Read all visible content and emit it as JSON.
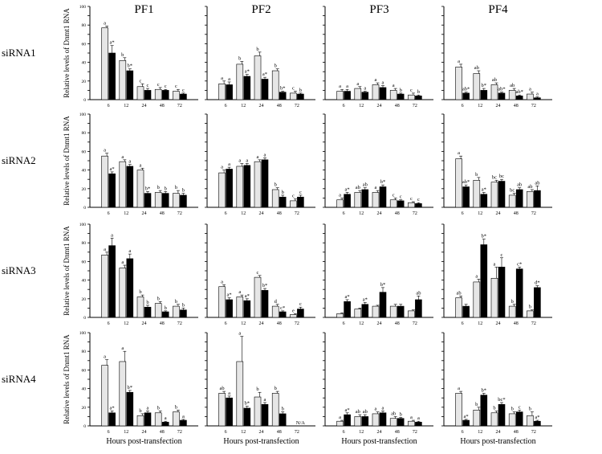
{
  "figure": {
    "columns": [
      "PF1",
      "PF2",
      "PF3",
      "PF4"
    ],
    "rows": [
      "siRNA1",
      "siRNA2",
      "siRNA3",
      "siRNA4"
    ],
    "ylabel": "Relative levels of Dnmt1 RNA",
    "xlabel": "Hours post-transfection",
    "colors": {
      "control": "#e6e6e6",
      "treated": "#000000",
      "axis": "#000000"
    }
  },
  "chart_data": [
    {
      "type": "bar",
      "panel": "siRNA1-PF1",
      "categories": [
        "6",
        "12",
        "24",
        "48",
        "72"
      ],
      "ylim": [
        0,
        100
      ],
      "ytick_labels": [
        "0",
        "",
        "20",
        "",
        "40",
        "",
        "60",
        "",
        "80",
        "",
        "100"
      ],
      "series": [
        {
          "values": [
            77,
            42,
            14,
            11,
            9
          ],
          "errors": [
            2,
            3,
            3,
            2,
            2
          ],
          "labels": [
            "a",
            "b",
            "c",
            "c",
            "c"
          ]
        },
        {
          "values": [
            50,
            31,
            10,
            10,
            6
          ],
          "errors": [
            8,
            2,
            2,
            1,
            1
          ],
          "labels": [
            "a*",
            "b*",
            "c",
            "c",
            "c"
          ]
        }
      ]
    },
    {
      "type": "bar",
      "panel": "siRNA1-PF2",
      "categories": [
        "6",
        "12",
        "24",
        "48",
        "72"
      ],
      "ylim": [
        0,
        100
      ],
      "ytick_labels": [],
      "series": [
        {
          "values": [
            17,
            38,
            47,
            31,
            7
          ],
          "errors": [
            3,
            3,
            4,
            2,
            2
          ],
          "labels": [
            "a",
            "b",
            "b",
            "b",
            "c"
          ]
        },
        {
          "values": [
            16,
            25,
            22,
            8,
            6
          ],
          "errors": [
            3,
            2,
            2,
            1,
            1
          ],
          "labels": [
            "a",
            "a*",
            "a*",
            "b*",
            "b"
          ]
        }
      ]
    },
    {
      "type": "bar",
      "panel": "siRNA1-PF3",
      "categories": [
        "6",
        "12",
        "24",
        "48",
        "72"
      ],
      "ylim": [
        0,
        100
      ],
      "ytick_labels": [],
      "series": [
        {
          "values": [
            9,
            12,
            16,
            10,
            5
          ],
          "errors": [
            2,
            2,
            2,
            2,
            2
          ],
          "labels": [
            "a",
            "a",
            "a",
            "a",
            "c"
          ]
        },
        {
          "values": [
            9,
            8,
            13,
            6,
            4
          ],
          "errors": [
            2,
            1,
            2,
            1,
            1
          ],
          "labels": [
            "a",
            "a",
            "a",
            "b",
            "b"
          ]
        }
      ]
    },
    {
      "type": "bar",
      "panel": "siRNA1-PF4",
      "categories": [
        "6",
        "12",
        "24",
        "48",
        "72"
      ],
      "ylim": [
        0,
        100
      ],
      "ytick_labels": [],
      "series": [
        {
          "values": [
            35,
            28,
            16,
            10,
            6
          ],
          "errors": [
            3,
            3,
            2,
            2,
            2
          ],
          "labels": [
            "a",
            "ab",
            "ab",
            "ab",
            "a"
          ]
        },
        {
          "values": [
            7,
            10,
            7,
            4,
            2
          ],
          "errors": [
            1,
            2,
            1,
            1,
            1
          ],
          "labels": [
            "ab*",
            "b*",
            "ab*",
            "ab*",
            "a"
          ]
        }
      ]
    },
    {
      "type": "bar",
      "panel": "siRNA2-PF1",
      "categories": [
        "6",
        "12",
        "24",
        "48",
        "72"
      ],
      "ylim": [
        0,
        100
      ],
      "ytick_labels": [
        "0",
        "",
        "20",
        "",
        "40",
        "",
        "60",
        "",
        "80",
        "",
        "100"
      ],
      "series": [
        {
          "values": [
            55,
            49,
            40,
            16,
            15
          ],
          "errors": [
            3,
            2,
            2,
            2,
            3
          ],
          "labels": [
            "a",
            "a",
            "a",
            "b",
            "b"
          ]
        },
        {
          "values": [
            36,
            44,
            15,
            15,
            13
          ],
          "errors": [
            2,
            2,
            2,
            2,
            2
          ],
          "labels": [
            "a*",
            "a",
            "b*",
            "b",
            "b"
          ]
        }
      ]
    },
    {
      "type": "bar",
      "panel": "siRNA2-PF2",
      "categories": [
        "6",
        "12",
        "24",
        "48",
        "72"
      ],
      "ylim": [
        0,
        100
      ],
      "ytick_labels": [],
      "series": [
        {
          "values": [
            37,
            44,
            49,
            19,
            7
          ],
          "errors": [
            3,
            3,
            2,
            2,
            2
          ],
          "labels": [
            "a",
            "a",
            "a",
            "b",
            "c"
          ]
        },
        {
          "values": [
            41,
            45,
            51,
            11,
            11
          ],
          "errors": [
            2,
            2,
            2,
            2,
            2
          ],
          "labels": [
            "a",
            "a",
            "a",
            "b",
            "c"
          ]
        }
      ]
    },
    {
      "type": "bar",
      "panel": "siRNA2-PF3",
      "categories": [
        "6",
        "12",
        "24",
        "48",
        "72"
      ],
      "ylim": [
        0,
        100
      ],
      "ytick_labels": [],
      "series": [
        {
          "values": [
            8,
            16,
            16,
            8,
            5
          ],
          "errors": [
            2,
            2,
            2,
            2,
            1
          ],
          "labels": [
            "a",
            "ab",
            "a",
            "c",
            "c"
          ]
        },
        {
          "values": [
            14,
            19,
            22,
            7,
            4
          ],
          "errors": [
            2,
            2,
            2,
            1,
            1
          ],
          "labels": [
            "a*",
            "ab",
            "b*",
            "c",
            "c"
          ]
        }
      ]
    },
    {
      "type": "bar",
      "panel": "siRNA2-PF4",
      "categories": [
        "6",
        "12",
        "24",
        "48",
        "72"
      ],
      "ylim": [
        0,
        100
      ],
      "ytick_labels": [],
      "series": [
        {
          "values": [
            52,
            29,
            27,
            13,
            17
          ],
          "errors": [
            3,
            3,
            2,
            2,
            2
          ],
          "labels": [
            "a",
            "b",
            "bc",
            "bc",
            "ab"
          ]
        },
        {
          "values": [
            22,
            14,
            28,
            19,
            18
          ],
          "errors": [
            2,
            2,
            2,
            2,
            5
          ],
          "labels": [
            "ab*",
            "a*",
            "bc",
            "ab",
            "ab"
          ]
        }
      ]
    },
    {
      "type": "bar",
      "panel": "siRNA3-PF1",
      "categories": [
        "6",
        "12",
        "24",
        "48",
        "72"
      ],
      "ylim": [
        0,
        100
      ],
      "ytick_labels": [
        "0",
        "",
        "20",
        "",
        "40",
        "",
        "60",
        "",
        "80",
        "",
        "100"
      ],
      "series": [
        {
          "values": [
            67,
            53,
            22,
            15,
            12
          ],
          "errors": [
            3,
            3,
            2,
            2,
            2
          ],
          "labels": [
            "a",
            "a",
            "b",
            "b",
            "b"
          ]
        },
        {
          "values": [
            77,
            63,
            11,
            6,
            8
          ],
          "errors": [
            8,
            5,
            2,
            1,
            2
          ],
          "labels": [
            "a",
            "a",
            "b",
            "b",
            "b"
          ]
        }
      ]
    },
    {
      "type": "bar",
      "panel": "siRNA3-PF2",
      "categories": [
        "6",
        "12",
        "24",
        "48",
        "72"
      ],
      "ylim": [
        0,
        100
      ],
      "ytick_labels": [],
      "series": [
        {
          "values": [
            33,
            22,
            43,
            12,
            3
          ],
          "errors": [
            2,
            2,
            2,
            2,
            1
          ],
          "labels": [
            "a",
            "a",
            "c",
            "d",
            "e"
          ]
        },
        {
          "values": [
            19,
            18,
            29,
            6,
            9
          ],
          "errors": [
            2,
            2,
            2,
            1,
            2
          ],
          "labels": [
            "a*",
            "a*",
            "b*",
            "c*",
            "c"
          ]
        }
      ]
    },
    {
      "type": "bar",
      "panel": "siRNA3-PF3",
      "categories": [
        "6",
        "12",
        "24",
        "48",
        "72"
      ],
      "ylim": [
        0,
        100
      ],
      "ytick_labels": [],
      "series": [
        {
          "values": [
            4,
            9,
            12,
            12,
            7
          ],
          "errors": [
            1,
            1,
            1,
            2,
            1
          ],
          "labels": [
            "",
            "",
            "",
            "",
            ""
          ]
        },
        {
          "values": [
            17,
            14,
            27,
            12,
            19
          ],
          "errors": [
            2,
            2,
            5,
            2,
            4
          ],
          "labels": [
            "a*",
            "a*",
            "b*",
            "",
            "ab"
          ]
        }
      ]
    },
    {
      "type": "bar",
      "panel": "siRNA3-PF4",
      "categories": [
        "6",
        "12",
        "24",
        "48",
        "72"
      ],
      "ylim": [
        0,
        100
      ],
      "ytick_labels": [],
      "series": [
        {
          "values": [
            21,
            38,
            42,
            12,
            7
          ],
          "errors": [
            2,
            3,
            12,
            2,
            1
          ],
          "labels": [
            "ab",
            "a",
            "a",
            "b",
            "b"
          ]
        },
        {
          "values": [
            12,
            78,
            54,
            52,
            32
          ],
          "errors": [
            2,
            6,
            10,
            2,
            2
          ],
          "labels": [
            "",
            "b*",
            "c",
            "c*",
            "d*"
          ]
        }
      ]
    },
    {
      "type": "bar",
      "panel": "siRNA4-PF1",
      "categories": [
        "6",
        "12",
        "24",
        "48",
        "72"
      ],
      "ylim": [
        0,
        100
      ],
      "ytick_labels": [
        "0",
        "",
        "20",
        "",
        "40",
        "",
        "60",
        "",
        "80",
        "",
        "100"
      ],
      "series": [
        {
          "values": [
            65,
            69,
            11,
            14,
            15
          ],
          "errors": [
            6,
            11,
            2,
            2,
            2
          ],
          "labels": [
            "a",
            "a",
            "b",
            "b",
            "b"
          ]
        },
        {
          "values": [
            14,
            36,
            14,
            4,
            6
          ],
          "errors": [
            2,
            2,
            2,
            1,
            1
          ],
          "labels": [
            "a*",
            "b*",
            "a",
            "a",
            "a"
          ]
        }
      ]
    },
    {
      "type": "bar",
      "panel": "siRNA4-PF2",
      "categories": [
        "6",
        "12",
        "24",
        "48",
        "72"
      ],
      "ylim": [
        0,
        100
      ],
      "ytick_labels": [],
      "series": [
        {
          "values": [
            35,
            69,
            31,
            35,
            0
          ],
          "errors": [
            2,
            27,
            5,
            2,
            0
          ],
          "labels": [
            "ab",
            "a",
            "b",
            "b",
            ""
          ]
        },
        {
          "values": [
            30,
            19,
            23,
            13,
            0
          ],
          "errors": [
            2,
            2,
            2,
            2,
            0
          ],
          "labels": [
            "a",
            "b*",
            "a",
            "b",
            "N/A"
          ]
        }
      ]
    },
    {
      "type": "bar",
      "panel": "siRNA4-PF3",
      "categories": [
        "6",
        "12",
        "24",
        "48",
        "72"
      ],
      "ylim": [
        0,
        100
      ],
      "ytick_labels": [],
      "series": [
        {
          "values": [
            5,
            10,
            13,
            8,
            5
          ],
          "errors": [
            1,
            2,
            2,
            2,
            1
          ],
          "labels": [
            "a",
            "ab",
            "a",
            "ab",
            "a"
          ]
        },
        {
          "values": [
            12,
            10,
            14,
            8,
            4
          ],
          "errors": [
            2,
            2,
            2,
            1,
            1
          ],
          "labels": [
            "a*",
            "ab",
            "a",
            "b",
            "a"
          ]
        }
      ]
    },
    {
      "type": "bar",
      "panel": "siRNA4-PF4",
      "categories": [
        "6",
        "12",
        "24",
        "48",
        "72"
      ],
      "ylim": [
        0,
        100
      ],
      "ytick_labels": [],
      "series": [
        {
          "values": [
            35,
            17,
            14,
            13,
            11
          ],
          "errors": [
            2,
            3,
            2,
            2,
            4
          ],
          "labels": [
            "a",
            "b",
            "b",
            "b",
            "b"
          ]
        },
        {
          "values": [
            6,
            33,
            23,
            15,
            5
          ],
          "errors": [
            1,
            2,
            2,
            2,
            1
          ],
          "labels": [
            "a*",
            "b*",
            "bc*",
            "c",
            "a*"
          ]
        }
      ]
    }
  ]
}
